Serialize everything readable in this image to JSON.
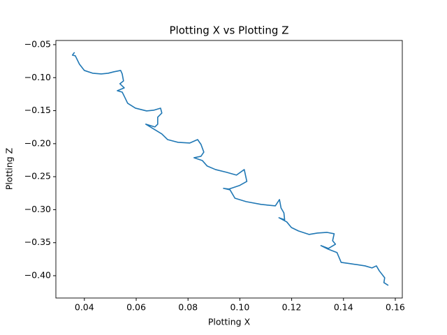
{
  "chart_data": {
    "type": "line",
    "title": "Plotting X vs Plotting Z",
    "xlabel": "Plotting X",
    "ylabel": "Plotting Z",
    "x": [
      0.0362,
      0.0354,
      0.0365,
      0.0381,
      0.04,
      0.0432,
      0.0465,
      0.0492,
      0.0513,
      0.054,
      0.0546,
      0.0551,
      0.0537,
      0.0554,
      0.0527,
      0.0546,
      0.0554,
      0.0567,
      0.0597,
      0.064,
      0.0667,
      0.0694,
      0.0699,
      0.0683,
      0.0683,
      0.0672,
      0.0637,
      0.0699,
      0.0721,
      0.0762,
      0.0807,
      0.0837,
      0.085,
      0.0861,
      0.085,
      0.0823,
      0.0855,
      0.0874,
      0.0906,
      0.0949,
      0.0987,
      0.1017,
      0.1027,
      0.0998,
      0.0958,
      0.0937,
      0.0962,
      0.0981,
      0.1024,
      0.1083,
      0.1137,
      0.1153,
      0.1159,
      0.117,
      0.1173,
      0.1151,
      0.1181,
      0.1199,
      0.1226,
      0.1267,
      0.1299,
      0.1337,
      0.1364,
      0.1358,
      0.1369,
      0.1342,
      0.1313,
      0.134,
      0.1375,
      0.1391,
      0.1429,
      0.1483,
      0.151,
      0.1527,
      0.1538,
      0.1559,
      0.1556,
      0.1573
    ],
    "series": [
      {
        "name": "Plotting Z",
        "color": "#1f77b4",
        "values": [
          -0.0616,
          -0.0659,
          -0.0669,
          -0.0796,
          -0.0891,
          -0.0933,
          -0.0944,
          -0.0933,
          -0.0912,
          -0.0891,
          -0.0944,
          -0.105,
          -0.1092,
          -0.1155,
          -0.1198,
          -0.1219,
          -0.1282,
          -0.1388,
          -0.1462,
          -0.1504,
          -0.1494,
          -0.1462,
          -0.1536,
          -0.1599,
          -0.1705,
          -0.1747,
          -0.1705,
          -0.1853,
          -0.1938,
          -0.198,
          -0.199,
          -0.1938,
          -0.2011,
          -0.2128,
          -0.2191,
          -0.2213,
          -0.2255,
          -0.2339,
          -0.2392,
          -0.2434,
          -0.2476,
          -0.2392,
          -0.2572,
          -0.2635,
          -0.2688,
          -0.2677,
          -0.2699,
          -0.2826,
          -0.2878,
          -0.2921,
          -0.2942,
          -0.2847,
          -0.2974,
          -0.3048,
          -0.3153,
          -0.3122,
          -0.3185,
          -0.327,
          -0.3322,
          -0.3375,
          -0.3354,
          -0.3344,
          -0.3365,
          -0.347,
          -0.3523,
          -0.3587,
          -0.3544,
          -0.3597,
          -0.365,
          -0.3798,
          -0.3819,
          -0.3851,
          -0.3882,
          -0.3851,
          -0.3925,
          -0.4031,
          -0.4105,
          -0.4147
        ]
      }
    ],
    "xlim": [
      0.029,
      0.1627
    ],
    "xticks": [
      0.04,
      0.06,
      0.08,
      {
        "value": 0.1,
        "label": "0.10"
      },
      0.12,
      0.14,
      0.16
    ],
    "ylim": [
      -0.4338,
      -0.0437
    ],
    "yticks": [
      {
        "value": -0.05,
        "label": "−0.05"
      },
      {
        "value": -0.1,
        "label": "−0.10"
      },
      {
        "value": -0.15,
        "label": "−0.15"
      },
      {
        "value": -0.2,
        "label": "−0.20"
      },
      {
        "value": -0.25,
        "label": "−0.25"
      },
      {
        "value": -0.3,
        "label": "−0.30"
      },
      {
        "value": -0.35,
        "label": "−0.35"
      },
      {
        "value": -0.4,
        "label": "−0.40"
      }
    ],
    "grid": false
  }
}
